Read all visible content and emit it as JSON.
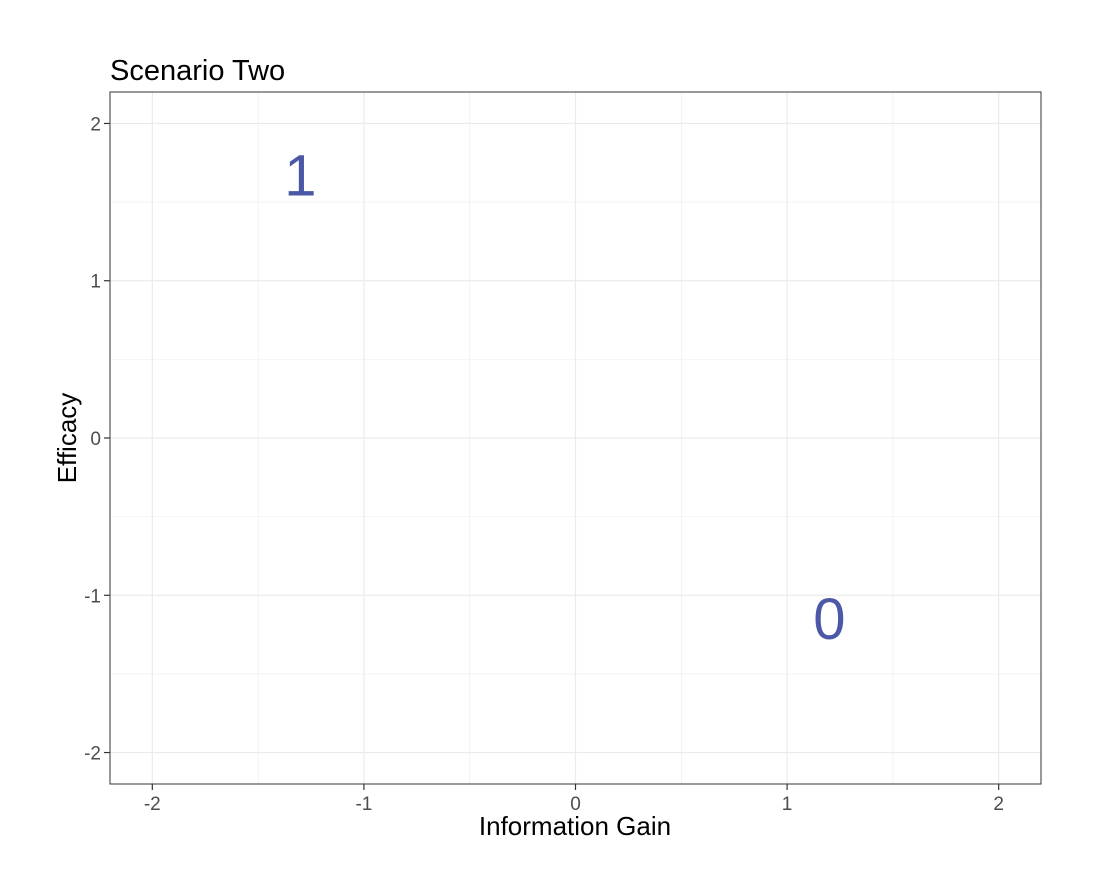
{
  "chart_data": {
    "type": "scatter",
    "title": "Scenario Two",
    "xlabel": "Information Gain",
    "ylabel": "Efficacy",
    "xlim": [
      -2.2,
      2.2
    ],
    "ylim": [
      -2.2,
      2.2
    ],
    "x_ticks": [
      -2,
      -1,
      0,
      1,
      2
    ],
    "y_ticks": [
      -2,
      -1,
      0,
      1,
      2
    ],
    "x_tick_labels": [
      "-2",
      "-1",
      "0",
      "1",
      "2"
    ],
    "y_tick_labels": [
      "-2",
      "-1",
      "0",
      "1",
      "2"
    ],
    "grid": true,
    "points": [
      {
        "x": -1.3,
        "y": 1.67,
        "label": "1"
      },
      {
        "x": 1.2,
        "y": -1.15,
        "label": "0"
      }
    ],
    "colors": {
      "point_label": "#4a58a6",
      "grid": "#ebebeb",
      "panel_border": "#333333"
    }
  }
}
